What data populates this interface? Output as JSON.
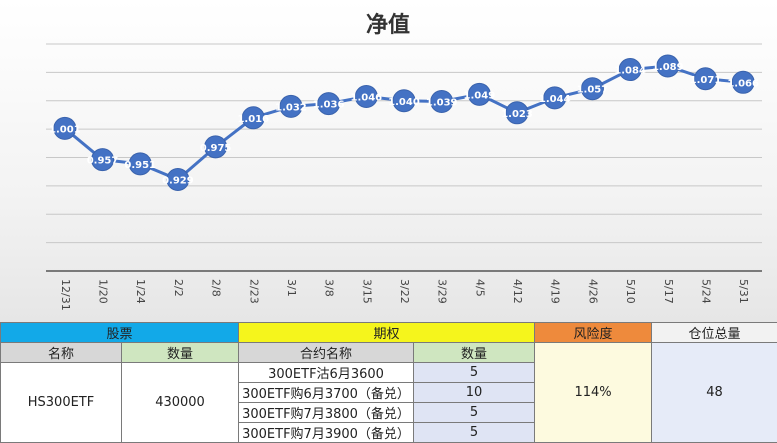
{
  "chart_data": {
    "type": "line",
    "title": "净值",
    "categories": [
      "12/31",
      "1/20",
      "1/24",
      "2/2",
      "2/8",
      "2/23",
      "3/1",
      "3/8",
      "3/15",
      "3/22",
      "3/29",
      "4/5",
      "4/12",
      "4/19",
      "4/26",
      "5/10",
      "5/17",
      "5/24",
      "5/31"
    ],
    "values": [
      1.001,
      0.957,
      0.951,
      0.929,
      0.975,
      1.016,
      1.032,
      1.036,
      1.046,
      1.04,
      1.039,
      1.049,
      1.023,
      1.044,
      1.057,
      1.084,
      1.089,
      1.071,
      1.066
    ],
    "data_labels": [
      "1.001",
      "0.957",
      "0.951",
      "0.929",
      "0.975",
      "1.016",
      "1.032",
      "1.036",
      "1.046",
      "1.040",
      "1.039",
      "1.049",
      "1.023",
      "1.044",
      "1.057",
      "1.084",
      "1.089",
      "1.071",
      "1.066"
    ],
    "ylim": [
      0.8,
      1.12
    ],
    "grid": true,
    "xlabel": "",
    "ylabel": "",
    "colors": {
      "line": "#4472c4",
      "marker": "#4472c4",
      "grid": "#c8c8c8"
    }
  },
  "table": {
    "header": {
      "stock": "股票",
      "option": "期权",
      "risk": "风险度",
      "position": "仓位总量"
    },
    "subheader": {
      "stock_name": "名称",
      "stock_qty": "数量",
      "contract_name": "合约名称",
      "option_qty": "数量"
    },
    "stock": {
      "name": "HS300ETF",
      "qty": "430000"
    },
    "options": [
      {
        "name": "300ETF沽6月3600",
        "qty": "5"
      },
      {
        "name": "300ETF购6月3700（备兑）",
        "qty": "10"
      },
      {
        "name": "300ETF购7月3800（备兑）",
        "qty": "5"
      },
      {
        "name": "300ETF购7月3900（备兑）",
        "qty": "5"
      }
    ],
    "risk_value": "114%",
    "position_value": "48",
    "colors": {
      "stock_header": "#12a9e8",
      "option_header": "#f5f51c",
      "risk_header": "#ee8a3c"
    }
  }
}
